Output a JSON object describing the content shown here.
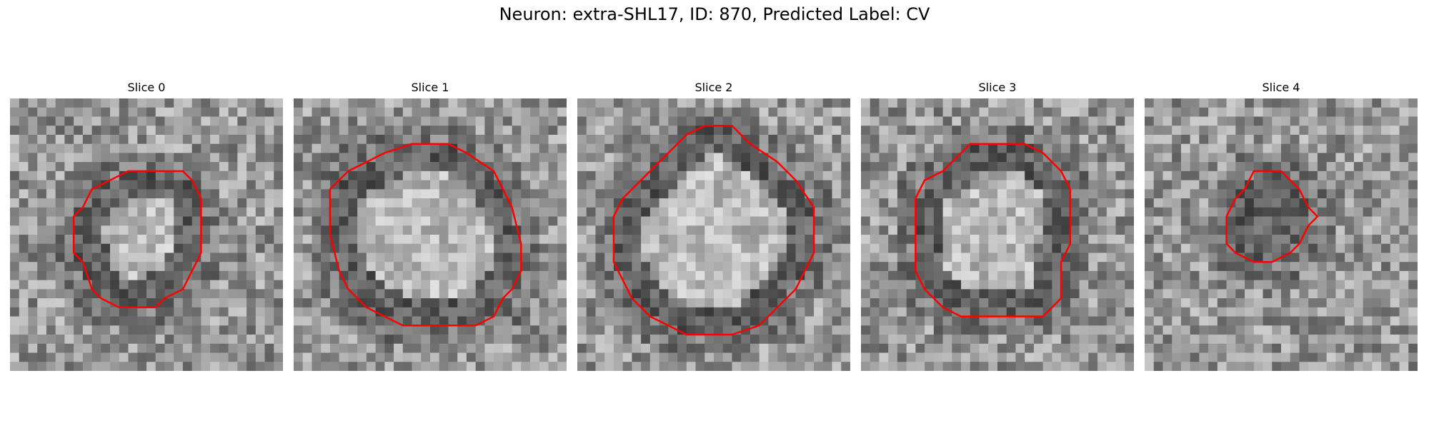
{
  "figure": {
    "title": "Neuron: extra-SHL17, ID: 870, Predicted Label: CV",
    "outline_color": "#ff0000"
  },
  "panels": [
    {
      "title": "Slice 0",
      "outline": [
        [
          15,
          8
        ],
        [
          19,
          8
        ],
        [
          20,
          9
        ],
        [
          21,
          11
        ],
        [
          21,
          17
        ],
        [
          20,
          19
        ],
        [
          19,
          21
        ],
        [
          17,
          22
        ],
        [
          16,
          23
        ],
        [
          12,
          23
        ],
        [
          10,
          22
        ],
        [
          9,
          21
        ],
        [
          8,
          18
        ],
        [
          7,
          17
        ],
        [
          7,
          13
        ],
        [
          8,
          12
        ],
        [
          9,
          10
        ],
        [
          11,
          9
        ],
        [
          13,
          8
        ]
      ]
    },
    {
      "title": "Slice 1",
      "outline": [
        [
          13,
          5
        ],
        [
          17,
          5
        ],
        [
          19,
          6
        ],
        [
          22,
          8
        ],
        [
          23,
          10
        ],
        [
          24,
          12
        ],
        [
          25,
          16
        ],
        [
          25,
          19
        ],
        [
          24,
          21
        ],
        [
          23,
          22
        ],
        [
          22,
          24
        ],
        [
          20,
          25
        ],
        [
          12,
          25
        ],
        [
          10,
          24
        ],
        [
          8,
          23
        ],
        [
          6,
          21
        ],
        [
          5,
          19
        ],
        [
          4,
          15
        ],
        [
          4,
          10
        ],
        [
          6,
          8
        ],
        [
          8,
          7
        ],
        [
          10,
          6
        ]
      ]
    },
    {
      "title": "Slice 2",
      "outline": [
        [
          12,
          4
        ],
        [
          14,
          3
        ],
        [
          17,
          3
        ],
        [
          19,
          5
        ],
        [
          22,
          7
        ],
        [
          24,
          9
        ],
        [
          26,
          12
        ],
        [
          26,
          17
        ],
        [
          25,
          19
        ],
        [
          24,
          21
        ],
        [
          22,
          23
        ],
        [
          20,
          25
        ],
        [
          17,
          26
        ],
        [
          12,
          26
        ],
        [
          10,
          25
        ],
        [
          8,
          24
        ],
        [
          6,
          22
        ],
        [
          5,
          20
        ],
        [
          4,
          18
        ],
        [
          4,
          13
        ],
        [
          5,
          11
        ],
        [
          7,
          9
        ],
        [
          9,
          7
        ],
        [
          11,
          5
        ]
      ]
    },
    {
      "title": "Slice 3",
      "outline": [
        [
          12,
          5
        ],
        [
          18,
          5
        ],
        [
          20,
          6
        ],
        [
          22,
          8
        ],
        [
          23,
          10
        ],
        [
          23,
          16
        ],
        [
          22,
          18
        ],
        [
          22,
          22
        ],
        [
          20,
          24
        ],
        [
          11,
          24
        ],
        [
          9,
          23
        ],
        [
          7,
          21
        ],
        [
          6,
          19
        ],
        [
          6,
          11
        ],
        [
          7,
          9
        ],
        [
          9,
          8
        ],
        [
          10,
          7
        ]
      ]
    },
    {
      "title": "Slice 4",
      "outline": [
        [
          12,
          8
        ],
        [
          15,
          8
        ],
        [
          17,
          10
        ],
        [
          18,
          12
        ],
        [
          19,
          13
        ],
        [
          18,
          14
        ],
        [
          17,
          16
        ],
        [
          16,
          17
        ],
        [
          14,
          18
        ],
        [
          12,
          18
        ],
        [
          10,
          17
        ],
        [
          9,
          16
        ],
        [
          9,
          13
        ],
        [
          10,
          11
        ],
        [
          11,
          10
        ]
      ]
    }
  ]
}
